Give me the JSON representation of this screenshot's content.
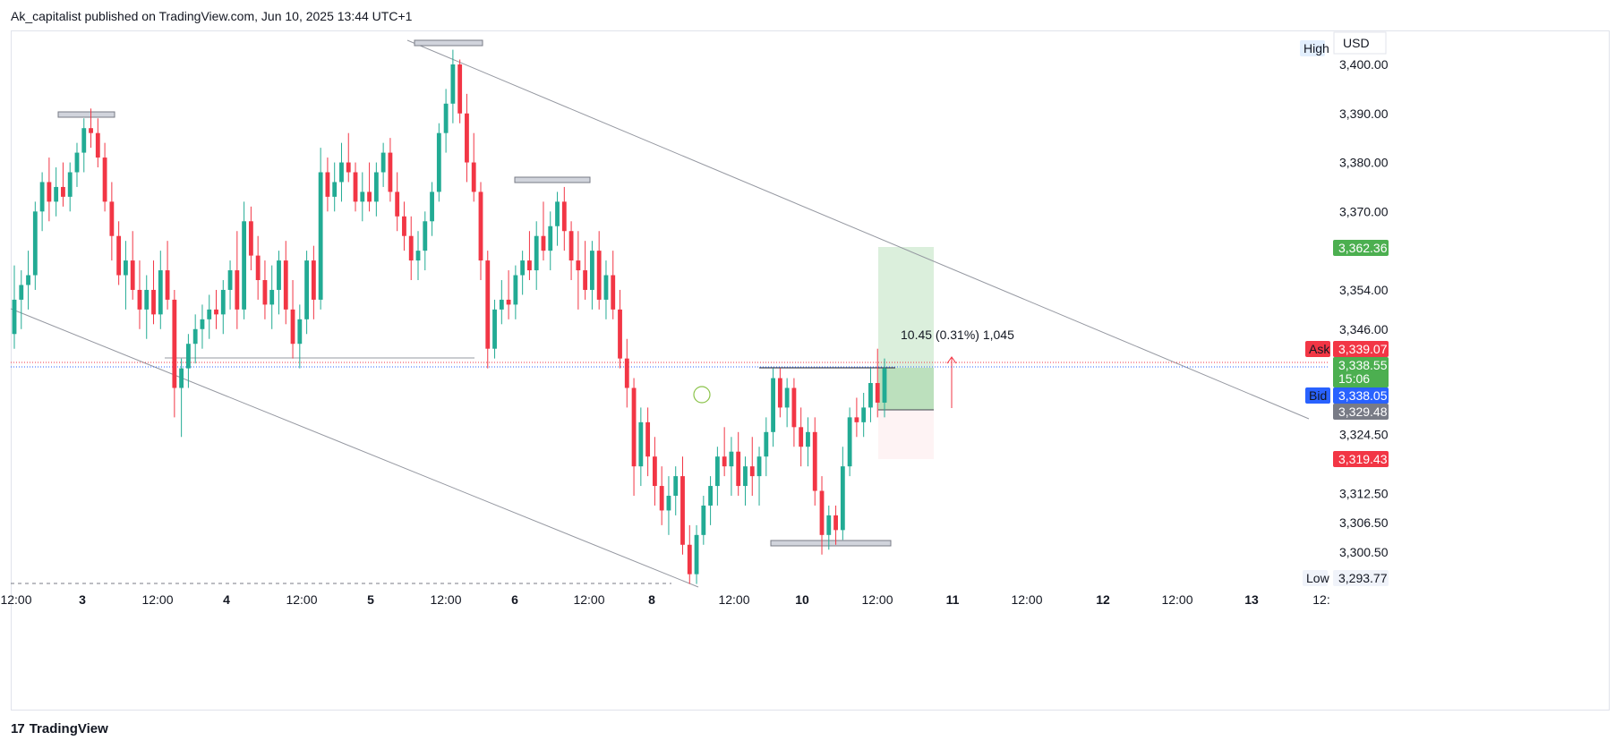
{
  "header": {
    "text": "Ak_capitalist published on TradingView.com, Jun 10, 2025 13:44 UTC+1"
  },
  "footer": {
    "brand": "TradingView",
    "logo": "tradingview-logo-icon"
  },
  "colors": {
    "up": "#22ab94",
    "down": "#f23645",
    "wick_up": "#22ab94",
    "wick_down": "#f23645",
    "trendline": "#9598a1",
    "grid": "#f0f3fa",
    "ask": "#f23645",
    "bid": "#2962ff",
    "last": "#4caf50",
    "target": "#4caf50",
    "stop": "#f23645",
    "muted": "#787b86"
  },
  "chart_data": {
    "type": "candlestick",
    "currency": "USD",
    "y_ticks": [
      3400.0,
      3390.0,
      3380.0,
      3370.0,
      3354.0,
      3346.0,
      3324.5,
      3312.5,
      3306.5,
      3300.5
    ],
    "y_tick_labels": [
      "3,400.00",
      "3,390.00",
      "3,380.00",
      "3,370.00",
      "3,354.00",
      "3,346.00",
      "3,324.50",
      "3,312.50",
      "3,306.50",
      "3,300.50"
    ],
    "x_tick_labels": [
      "12:00",
      "3",
      "12:00",
      "4",
      "12:00",
      "5",
      "12:00",
      "6",
      "12:00",
      "8",
      "12:00",
      "10",
      "12:00",
      "11",
      "12:00",
      "12",
      "12:00",
      "13",
      "12:"
    ],
    "bold_x_labels": [
      "3",
      "4",
      "5",
      "6",
      "8",
      "10",
      "11",
      "12",
      "13"
    ],
    "high": {
      "label": "High",
      "value": null
    },
    "low": {
      "label": "Low",
      "value": "3,293.77"
    },
    "price_badges": {
      "target": "3,362.36",
      "ask_label": "Ask",
      "ask": "3,339.07",
      "last": "3,338.55",
      "countdown": "15:06",
      "bid_label": "Bid",
      "bid": "3,338.05",
      "entry": "3,329.48",
      "stop": "3,319.43"
    },
    "measure_label": "10.45 (0.31%) 1,045",
    "candles": [
      {
        "o": 3345,
        "h": 3359,
        "l": 3342,
        "c": 3352
      },
      {
        "o": 3352,
        "h": 3358,
        "l": 3346,
        "c": 3355
      },
      {
        "o": 3355,
        "h": 3362,
        "l": 3350,
        "c": 3357
      },
      {
        "o": 3357,
        "h": 3372,
        "l": 3354,
        "c": 3370
      },
      {
        "o": 3370,
        "h": 3378,
        "l": 3366,
        "c": 3376
      },
      {
        "o": 3376,
        "h": 3381,
        "l": 3368,
        "c": 3372
      },
      {
        "o": 3372,
        "h": 3379,
        "l": 3369,
        "c": 3375
      },
      {
        "o": 3375,
        "h": 3380,
        "l": 3371,
        "c": 3373
      },
      {
        "o": 3373,
        "h": 3380,
        "l": 3370,
        "c": 3378
      },
      {
        "o": 3378,
        "h": 3384,
        "l": 3375,
        "c": 3382
      },
      {
        "o": 3382,
        "h": 3389,
        "l": 3378,
        "c": 3387
      },
      {
        "o": 3387,
        "h": 3391,
        "l": 3383,
        "c": 3386
      },
      {
        "o": 3386,
        "h": 3389,
        "l": 3379,
        "c": 3381
      },
      {
        "o": 3381,
        "h": 3384,
        "l": 3370,
        "c": 3372
      },
      {
        "o": 3372,
        "h": 3376,
        "l": 3360,
        "c": 3365
      },
      {
        "o": 3365,
        "h": 3368,
        "l": 3355,
        "c": 3357
      },
      {
        "o": 3357,
        "h": 3364,
        "l": 3350,
        "c": 3360
      },
      {
        "o": 3360,
        "h": 3366,
        "l": 3352,
        "c": 3354
      },
      {
        "o": 3354,
        "h": 3360,
        "l": 3346,
        "c": 3350
      },
      {
        "o": 3350,
        "h": 3357,
        "l": 3344,
        "c": 3354
      },
      {
        "o": 3354,
        "h": 3360,
        "l": 3347,
        "c": 3349
      },
      {
        "o": 3349,
        "h": 3362,
        "l": 3346,
        "c": 3358
      },
      {
        "o": 3358,
        "h": 3364,
        "l": 3350,
        "c": 3352
      },
      {
        "o": 3352,
        "h": 3354,
        "l": 3328,
        "c": 3334
      },
      {
        "o": 3334,
        "h": 3340,
        "l": 3324,
        "c": 3338
      },
      {
        "o": 3338,
        "h": 3345,
        "l": 3334,
        "c": 3343
      },
      {
        "o": 3343,
        "h": 3349,
        "l": 3339,
        "c": 3346
      },
      {
        "o": 3346,
        "h": 3351,
        "l": 3342,
        "c": 3348
      },
      {
        "o": 3348,
        "h": 3353,
        "l": 3344,
        "c": 3350
      },
      {
        "o": 3350,
        "h": 3354,
        "l": 3346,
        "c": 3349
      },
      {
        "o": 3349,
        "h": 3356,
        "l": 3345,
        "c": 3354
      },
      {
        "o": 3354,
        "h": 3360,
        "l": 3350,
        "c": 3358
      },
      {
        "o": 3358,
        "h": 3366,
        "l": 3346,
        "c": 3350
      },
      {
        "o": 3350,
        "h": 3372,
        "l": 3348,
        "c": 3368
      },
      {
        "o": 3368,
        "h": 3371,
        "l": 3358,
        "c": 3361
      },
      {
        "o": 3361,
        "h": 3365,
        "l": 3352,
        "c": 3356
      },
      {
        "o": 3356,
        "h": 3360,
        "l": 3348,
        "c": 3351
      },
      {
        "o": 3351,
        "h": 3359,
        "l": 3346,
        "c": 3354
      },
      {
        "o": 3354,
        "h": 3362,
        "l": 3349,
        "c": 3360
      },
      {
        "o": 3360,
        "h": 3364,
        "l": 3347,
        "c": 3350
      },
      {
        "o": 3350,
        "h": 3356,
        "l": 3340,
        "c": 3343
      },
      {
        "o": 3343,
        "h": 3351,
        "l": 3338,
        "c": 3348
      },
      {
        "o": 3348,
        "h": 3362,
        "l": 3345,
        "c": 3360
      },
      {
        "o": 3360,
        "h": 3363,
        "l": 3348,
        "c": 3352
      },
      {
        "o": 3352,
        "h": 3383,
        "l": 3350,
        "c": 3378
      },
      {
        "o": 3378,
        "h": 3381,
        "l": 3370,
        "c": 3373
      },
      {
        "o": 3373,
        "h": 3380,
        "l": 3370,
        "c": 3376
      },
      {
        "o": 3376,
        "h": 3384,
        "l": 3372,
        "c": 3380
      },
      {
        "o": 3380,
        "h": 3386,
        "l": 3376,
        "c": 3378
      },
      {
        "o": 3378,
        "h": 3380,
        "l": 3370,
        "c": 3372
      },
      {
        "o": 3372,
        "h": 3378,
        "l": 3368,
        "c": 3374
      },
      {
        "o": 3374,
        "h": 3380,
        "l": 3370,
        "c": 3372
      },
      {
        "o": 3372,
        "h": 3380,
        "l": 3369,
        "c": 3378
      },
      {
        "o": 3378,
        "h": 3384,
        "l": 3375,
        "c": 3382
      },
      {
        "o": 3382,
        "h": 3385,
        "l": 3372,
        "c": 3374
      },
      {
        "o": 3374,
        "h": 3378,
        "l": 3366,
        "c": 3369
      },
      {
        "o": 3369,
        "h": 3372,
        "l": 3362,
        "c": 3365
      },
      {
        "o": 3365,
        "h": 3369,
        "l": 3356,
        "c": 3360
      },
      {
        "o": 3360,
        "h": 3366,
        "l": 3356,
        "c": 3362
      },
      {
        "o": 3362,
        "h": 3370,
        "l": 3358,
        "c": 3368
      },
      {
        "o": 3368,
        "h": 3376,
        "l": 3365,
        "c": 3374
      },
      {
        "o": 3374,
        "h": 3388,
        "l": 3372,
        "c": 3386
      },
      {
        "o": 3386,
        "h": 3395,
        "l": 3382,
        "c": 3392
      },
      {
        "o": 3392,
        "h": 3403,
        "l": 3388,
        "c": 3400
      },
      {
        "o": 3400,
        "h": 3401,
        "l": 3388,
        "c": 3390
      },
      {
        "o": 3390,
        "h": 3394,
        "l": 3376,
        "c": 3380
      },
      {
        "o": 3380,
        "h": 3386,
        "l": 3372,
        "c": 3374
      },
      {
        "o": 3374,
        "h": 3376,
        "l": 3356,
        "c": 3360
      },
      {
        "o": 3360,
        "h": 3362,
        "l": 3338,
        "c": 3342
      },
      {
        "o": 3342,
        "h": 3352,
        "l": 3340,
        "c": 3350
      },
      {
        "o": 3350,
        "h": 3356,
        "l": 3347,
        "c": 3352
      },
      {
        "o": 3352,
        "h": 3358,
        "l": 3348,
        "c": 3351
      },
      {
        "o": 3351,
        "h": 3359,
        "l": 3348,
        "c": 3357
      },
      {
        "o": 3357,
        "h": 3362,
        "l": 3353,
        "c": 3360
      },
      {
        "o": 3360,
        "h": 3366,
        "l": 3356,
        "c": 3358
      },
      {
        "o": 3358,
        "h": 3368,
        "l": 3354,
        "c": 3365
      },
      {
        "o": 3365,
        "h": 3372,
        "l": 3360,
        "c": 3362
      },
      {
        "o": 3362,
        "h": 3370,
        "l": 3358,
        "c": 3367
      },
      {
        "o": 3367,
        "h": 3374,
        "l": 3363,
        "c": 3372
      },
      {
        "o": 3372,
        "h": 3375,
        "l": 3362,
        "c": 3366
      },
      {
        "o": 3366,
        "h": 3368,
        "l": 3356,
        "c": 3360
      },
      {
        "o": 3360,
        "h": 3366,
        "l": 3350,
        "c": 3358
      },
      {
        "o": 3358,
        "h": 3364,
        "l": 3352,
        "c": 3354
      },
      {
        "o": 3354,
        "h": 3364,
        "l": 3350,
        "c": 3362
      },
      {
        "o": 3362,
        "h": 3366,
        "l": 3350,
        "c": 3352
      },
      {
        "o": 3352,
        "h": 3360,
        "l": 3348,
        "c": 3357
      },
      {
        "o": 3357,
        "h": 3362,
        "l": 3348,
        "c": 3350
      },
      {
        "o": 3350,
        "h": 3354,
        "l": 3338,
        "c": 3340
      },
      {
        "o": 3340,
        "h": 3344,
        "l": 3330,
        "c": 3334
      },
      {
        "o": 3334,
        "h": 3336,
        "l": 3312,
        "c": 3318
      },
      {
        "o": 3318,
        "h": 3330,
        "l": 3314,
        "c": 3327
      },
      {
        "o": 3327,
        "h": 3330,
        "l": 3316,
        "c": 3320
      },
      {
        "o": 3320,
        "h": 3324,
        "l": 3310,
        "c": 3314
      },
      {
        "o": 3314,
        "h": 3318,
        "l": 3306,
        "c": 3309
      },
      {
        "o": 3309,
        "h": 3316,
        "l": 3304,
        "c": 3312
      },
      {
        "o": 3312,
        "h": 3318,
        "l": 3308,
        "c": 3316
      },
      {
        "o": 3316,
        "h": 3320,
        "l": 3300,
        "c": 3302
      },
      {
        "o": 3302,
        "h": 3306,
        "l": 3294,
        "c": 3296
      },
      {
        "o": 3296,
        "h": 3306,
        "l": 3294,
        "c": 3304
      },
      {
        "o": 3304,
        "h": 3312,
        "l": 3302,
        "c": 3310
      },
      {
        "o": 3310,
        "h": 3316,
        "l": 3306,
        "c": 3314
      },
      {
        "o": 3314,
        "h": 3322,
        "l": 3310,
        "c": 3320
      },
      {
        "o": 3320,
        "h": 3326,
        "l": 3316,
        "c": 3318
      },
      {
        "o": 3318,
        "h": 3324,
        "l": 3312,
        "c": 3321
      },
      {
        "o": 3321,
        "h": 3325,
        "l": 3312,
        "c": 3314
      },
      {
        "o": 3314,
        "h": 3320,
        "l": 3310,
        "c": 3318
      },
      {
        "o": 3318,
        "h": 3324,
        "l": 3312,
        "c": 3316
      },
      {
        "o": 3316,
        "h": 3322,
        "l": 3310,
        "c": 3320
      },
      {
        "o": 3320,
        "h": 3328,
        "l": 3316,
        "c": 3325
      },
      {
        "o": 3325,
        "h": 3338,
        "l": 3322,
        "c": 3336
      },
      {
        "o": 3336,
        "h": 3338,
        "l": 3328,
        "c": 3330
      },
      {
        "o": 3330,
        "h": 3336,
        "l": 3326,
        "c": 3334
      },
      {
        "o": 3334,
        "h": 3336,
        "l": 3322,
        "c": 3326
      },
      {
        "o": 3326,
        "h": 3330,
        "l": 3318,
        "c": 3322
      },
      {
        "o": 3322,
        "h": 3328,
        "l": 3318,
        "c": 3325
      },
      {
        "o": 3325,
        "h": 3328,
        "l": 3310,
        "c": 3313
      },
      {
        "o": 3313,
        "h": 3316,
        "l": 3300,
        "c": 3304
      },
      {
        "o": 3304,
        "h": 3310,
        "l": 3301,
        "c": 3308
      },
      {
        "o": 3308,
        "h": 3310,
        "l": 3302,
        "c": 3305
      },
      {
        "o": 3305,
        "h": 3322,
        "l": 3303,
        "c": 3318
      },
      {
        "o": 3318,
        "h": 3330,
        "l": 3316,
        "c": 3328
      },
      {
        "o": 3328,
        "h": 3332,
        "l": 3324,
        "c": 3327
      },
      {
        "o": 3327,
        "h": 3333,
        "l": 3324,
        "c": 3330
      },
      {
        "o": 3330,
        "h": 3338,
        "l": 3327,
        "c": 3335
      },
      {
        "o": 3335,
        "h": 3342,
        "l": 3328,
        "c": 3331
      },
      {
        "o": 3331,
        "h": 3340,
        "l": 3328,
        "c": 3338
      }
    ]
  }
}
